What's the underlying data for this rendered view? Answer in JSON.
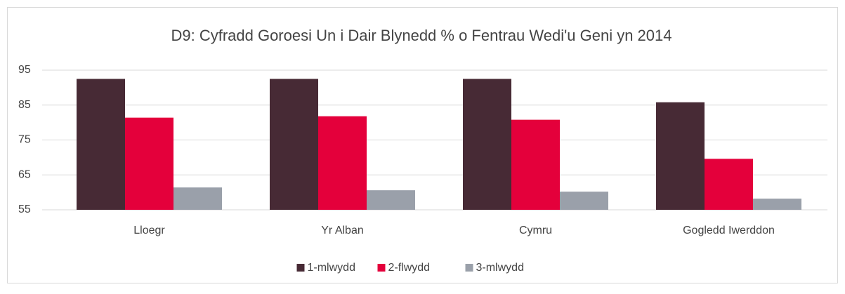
{
  "chart_data": {
    "type": "bar",
    "title": "D9: Cyfradd Goroesi Un i Dair Blynedd % o Fentrau Wedi'u Geni yn 2014",
    "categories": [
      "Lloegr",
      "Yr Alban",
      "Cymru",
      "Gogledd Iwerddon"
    ],
    "series": [
      {
        "name": "1-mlwydd",
        "color": "#472a35",
        "values": [
          92.5,
          92.5,
          92.5,
          85.8
        ]
      },
      {
        "name": "2-flwydd",
        "color": "#e4003b",
        "values": [
          81.4,
          81.8,
          80.8,
          69.6
        ]
      },
      {
        "name": "3-mlwydd",
        "color": "#9aa0aa",
        "values": [
          61.4,
          60.6,
          60.2,
          58.2
        ]
      }
    ],
    "ylim": [
      55,
      95
    ],
    "yticks": [
      55,
      65,
      75,
      85,
      95
    ],
    "grid": true,
    "legend": "bottom"
  }
}
